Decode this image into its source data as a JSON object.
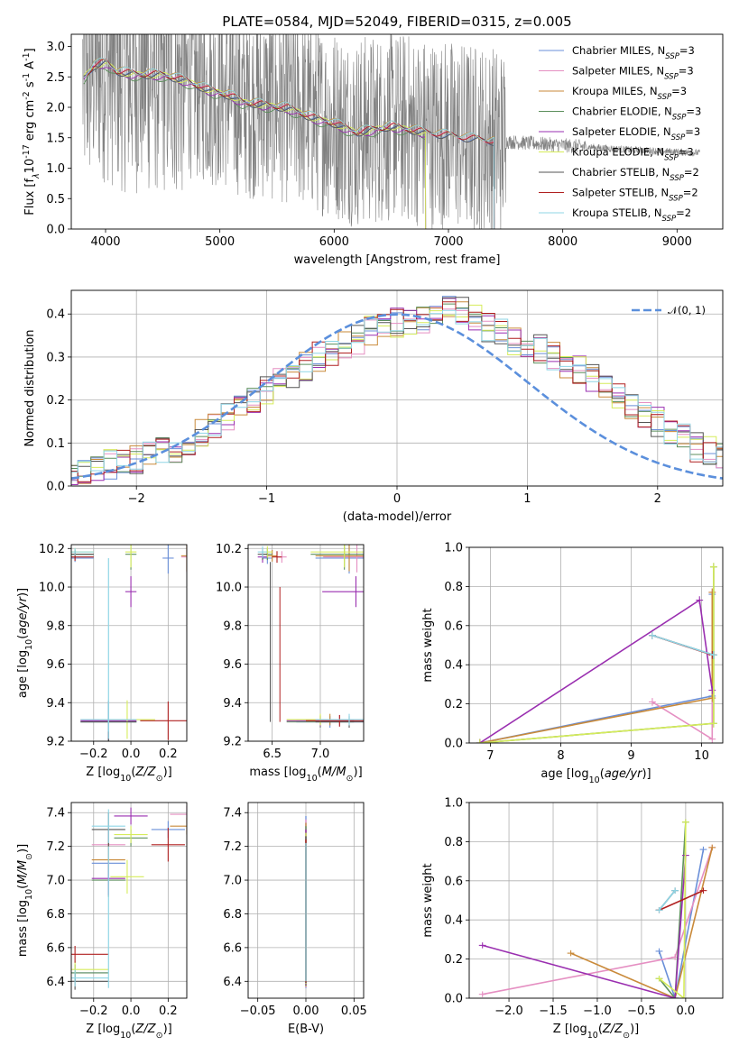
{
  "colors": {
    "chabrier_miles": "#6a8fd8",
    "salpeter_miles": "#e58fc2",
    "kroupa_miles": "#c98a3a",
    "chabrier_elodie": "#5c8f5c",
    "salpeter_elodie": "#9a2fb0",
    "kroupa_elodie": "#d6ec5a",
    "chabrier_stelib": "#555555",
    "salpeter_stelib": "#b02020",
    "kroupa_stelib": "#8fd6e6",
    "data": "#808080",
    "gauss": "#5b8fdc"
  },
  "chart_data": [
    {
      "type": "line",
      "title": "PLATE=0584, MJD=52049, FIBERID=0315, z=0.005",
      "xlabel": "wavelength [Angstrom, rest frame]",
      "ylabel": "Flux [f$_\\lambda$10$^{-17}$ erg cm$^{-2}$ s$^{-1}$ A$^{-1}$]",
      "xlim": [
        3700,
        9400
      ],
      "ylim": [
        0,
        3.2
      ],
      "xticks": [
        "4000",
        "5000",
        "6000",
        "7000",
        "8000",
        "9000"
      ],
      "yticks": [
        "0.0",
        "0.5",
        "1.0",
        "1.5",
        "2.0",
        "2.5",
        "3.0"
      ],
      "legend_position": "top-right",
      "legend": [
        {
          "text": "Chabrier MILES, N",
          "sub": "SSP",
          "tail": "=3",
          "color": "chabrier_miles"
        },
        {
          "text": "Salpeter MILES, N",
          "sub": "SSP",
          "tail": "=3",
          "color": "salpeter_miles"
        },
        {
          "text": "Kroupa MILES, N",
          "sub": "SSP",
          "tail": "=3",
          "color": "kroupa_miles"
        },
        {
          "text": "Chabrier ELODIE, N",
          "sub": "SSP",
          "tail": "=3",
          "color": "chabrier_elodie"
        },
        {
          "text": "Salpeter ELODIE, N",
          "sub": "SSP",
          "tail": "=3",
          "color": "salpeter_elodie"
        },
        {
          "text": "Kroupa ELODIE, N",
          "sub": "SSP",
          "tail": "=3",
          "color": "kroupa_elodie"
        },
        {
          "text": "Chabrier STELIB, N",
          "sub": "SSP",
          "tail": "=2",
          "color": "chabrier_stelib"
        },
        {
          "text": "Salpeter STELIB, N",
          "sub": "SSP",
          "tail": "=2",
          "color": "salpeter_stelib"
        },
        {
          "text": "Kroupa STELIB, N",
          "sub": "SSP",
          "tail": "=2",
          "color": "kroupa_stelib"
        }
      ],
      "data_range": [
        3800,
        9200
      ],
      "model_anchor_points": [
        [
          3810,
          2.5
        ],
        [
          3900,
          2.7
        ],
        [
          4000,
          2.75
        ],
        [
          4100,
          2.6
        ],
        [
          4300,
          2.55
        ],
        [
          4500,
          2.55
        ],
        [
          4700,
          2.45
        ],
        [
          4900,
          2.3
        ],
        [
          5100,
          2.2
        ],
        [
          5200,
          2.1
        ],
        [
          5400,
          2.05
        ],
        [
          5600,
          2.0
        ],
        [
          5800,
          1.85
        ],
        [
          6000,
          1.75
        ],
        [
          6200,
          1.6
        ],
        [
          6500,
          1.7
        ],
        [
          6800,
          1.6
        ],
        [
          7000,
          1.55
        ],
        [
          7400,
          1.45
        ],
        [
          7800,
          1.4
        ],
        [
          8200,
          1.35
        ],
        [
          8600,
          1.3
        ],
        [
          9200,
          1.25
        ]
      ],
      "model_end": {
        "elodie": 6800,
        "miles": 7400,
        "stelib": 7400
      }
    },
    {
      "type": "histogram",
      "xlabel": "(data-model)/error",
      "ylabel": "Normed distribution",
      "xlim": [
        -2.5,
        2.5
      ],
      "ylim": [
        0,
        0.455
      ],
      "xticks": [
        "−2",
        "−1",
        "0",
        "1",
        "2"
      ],
      "yticks": [
        "0.0",
        "0.1",
        "0.2",
        "0.3",
        "0.4"
      ],
      "legend": "𝒩(0, 1)",
      "legend_position": "top-right",
      "bin_width": 0.1,
      "step_values": [
        0.03,
        0.03,
        0.04,
        0.05,
        0.06,
        0.06,
        0.07,
        0.08,
        0.09,
        0.1,
        0.12,
        0.14,
        0.16,
        0.18,
        0.2,
        0.22,
        0.24,
        0.26,
        0.28,
        0.3,
        0.31,
        0.33,
        0.34,
        0.36,
        0.37,
        0.38,
        0.385,
        0.39,
        0.4,
        0.42,
        0.41,
        0.39,
        0.37,
        0.36,
        0.34,
        0.33,
        0.32,
        0.3,
        0.28,
        0.27,
        0.25,
        0.23,
        0.21,
        0.19,
        0.17,
        0.15,
        0.13,
        0.11,
        0.09,
        0.08,
        0.07
      ]
    },
    {
      "type": "scatter",
      "xlabel": "Z [log$_{10}$($Z/Z_\\odot$)]",
      "ylabel": "age  [log$_{10}$($age/yr$)]",
      "xlim": [
        -0.32,
        0.3
      ],
      "ylim": [
        9.2,
        10.22
      ],
      "xticks": [
        "−0.2",
        "0.0",
        "0.2"
      ],
      "yticks": [
        "9.2",
        "9.4",
        "9.6",
        "9.8",
        "10.0",
        "10.2"
      ]
    },
    {
      "type": "scatter",
      "xlabel": "mass [log$_{10}$($M/M_\\odot$)]",
      "ylabel": "",
      "xlim": [
        6.25,
        7.45
      ],
      "ylim": [
        9.2,
        10.22
      ],
      "xticks": [
        "6.5",
        "7.0"
      ],
      "yticks": [
        "9.2",
        "9.4",
        "9.6",
        "9.8",
        "10.0",
        "10.2"
      ]
    },
    {
      "type": "line",
      "xlabel": "age  [log$_{10}$($age/yr$)]",
      "ylabel": "mass weight",
      "xlim": [
        6.7,
        10.3
      ],
      "ylim": [
        0,
        1
      ],
      "xticks": [
        "7",
        "8",
        "9",
        "10"
      ],
      "yticks": [
        "0.0",
        "0.2",
        "0.4",
        "0.6",
        "0.8",
        "1.0"
      ]
    },
    {
      "type": "scatter",
      "xlabel": "Z [log$_{10}$($Z/Z_\\odot$)]",
      "ylabel": "mass [log$_{10}$($M/M_\\odot$)]",
      "xlim": [
        -0.32,
        0.3
      ],
      "ylim": [
        6.3,
        7.46
      ],
      "xticks": [
        "−0.2",
        "0.0",
        "0.2"
      ],
      "yticks": [
        "6.4",
        "6.6",
        "6.8",
        "7.0",
        "7.2",
        "7.4"
      ]
    },
    {
      "type": "scatter",
      "xlabel": "E(B-V)",
      "ylabel": "",
      "xlim": [
        -0.06,
        0.06
      ],
      "ylim": [
        6.3,
        7.46
      ],
      "xticks": [
        "−0.05",
        "0.00",
        "0.05"
      ],
      "yticks": [
        "6.4",
        "6.6",
        "6.8",
        "7.0",
        "7.2",
        "7.4"
      ]
    },
    {
      "type": "line",
      "xlabel": "Z [log$_{10}$($Z/Z_\\odot$)]",
      "ylabel": "mass weight",
      "xlim": [
        -2.45,
        0.42
      ],
      "ylim": [
        0,
        1
      ],
      "xticks": [
        "−2.0",
        "−1.5",
        "−1.0",
        "−0.5",
        "0.0"
      ],
      "yticks": [
        "0.0",
        "0.2",
        "0.4",
        "0.6",
        "0.8",
        "1.0"
      ]
    }
  ],
  "ssp_fits": {
    "chabrier_miles": {
      "age": [
        10.15,
        9.3,
        10.15
      ],
      "Z": [
        -0.3,
        -0.12,
        0.2
      ],
      "mass": [
        6.45,
        7.1,
        7.3
      ],
      "w": [
        0.24,
        0.0,
        0.76
      ]
    },
    "salpeter_miles": {
      "age": [
        10.15,
        9.3,
        10.15
      ],
      "Z": [
        -2.3,
        -0.12,
        0.3
      ],
      "mass": [
        6.6,
        7.2,
        7.38
      ],
      "w": [
        0.02,
        0.21,
        0.77
      ]
    },
    "kroupa_miles": {
      "age": [
        10.15,
        9.3,
        10.15
      ],
      "Z": [
        -1.3,
        -0.12,
        0.3
      ],
      "mass": [
        6.5,
        7.1,
        7.3
      ],
      "w": [
        0.23,
        0.0,
        0.77
      ]
    },
    "chabrier_elodie": {
      "age": [
        10.17,
        9.3,
        10.17
      ],
      "Z": [
        -0.3,
        -0.12,
        0.0
      ],
      "mass": [
        6.45,
        7.0,
        7.25
      ],
      "w": [
        0.1,
        0.0,
        0.9
      ]
    },
    "salpeter_elodie": {
      "age": [
        10.15,
        9.3,
        9.97
      ],
      "Z": [
        -2.3,
        -0.12,
        0.0
      ],
      "mass": [
        6.4,
        7.0,
        7.37
      ],
      "w": [
        0.27,
        0.0,
        0.73
      ]
    },
    "kroupa_elodie": {
      "age": [
        10.17,
        9.3,
        10.17
      ],
      "Z": [
        -0.3,
        -0.02,
        0.0
      ],
      "mass": [
        6.45,
        7.0,
        7.25
      ],
      "w": [
        0.1,
        0.0,
        0.9
      ]
    },
    "chabrier_stelib": {
      "age": [
        10.17,
        9.3
      ],
      "Z": [
        -0.3,
        -0.12
      ],
      "mass": [
        6.4,
        7.3
      ],
      "w": [
        0.45,
        0.55
      ]
    },
    "salpeter_stelib": {
      "age": [
        10.15,
        9.3
      ],
      "Z": [
        -0.3,
        0.2
      ],
      "mass": [
        6.55,
        7.2
      ],
      "w": [
        0.45,
        0.55
      ]
    },
    "kroupa_stelib": {
      "age": [
        10.17,
        9.3
      ],
      "Z": [
        -0.3,
        -0.12
      ],
      "mass": [
        6.4,
        7.3
      ],
      "w": [
        0.45,
        0.55
      ]
    }
  }
}
